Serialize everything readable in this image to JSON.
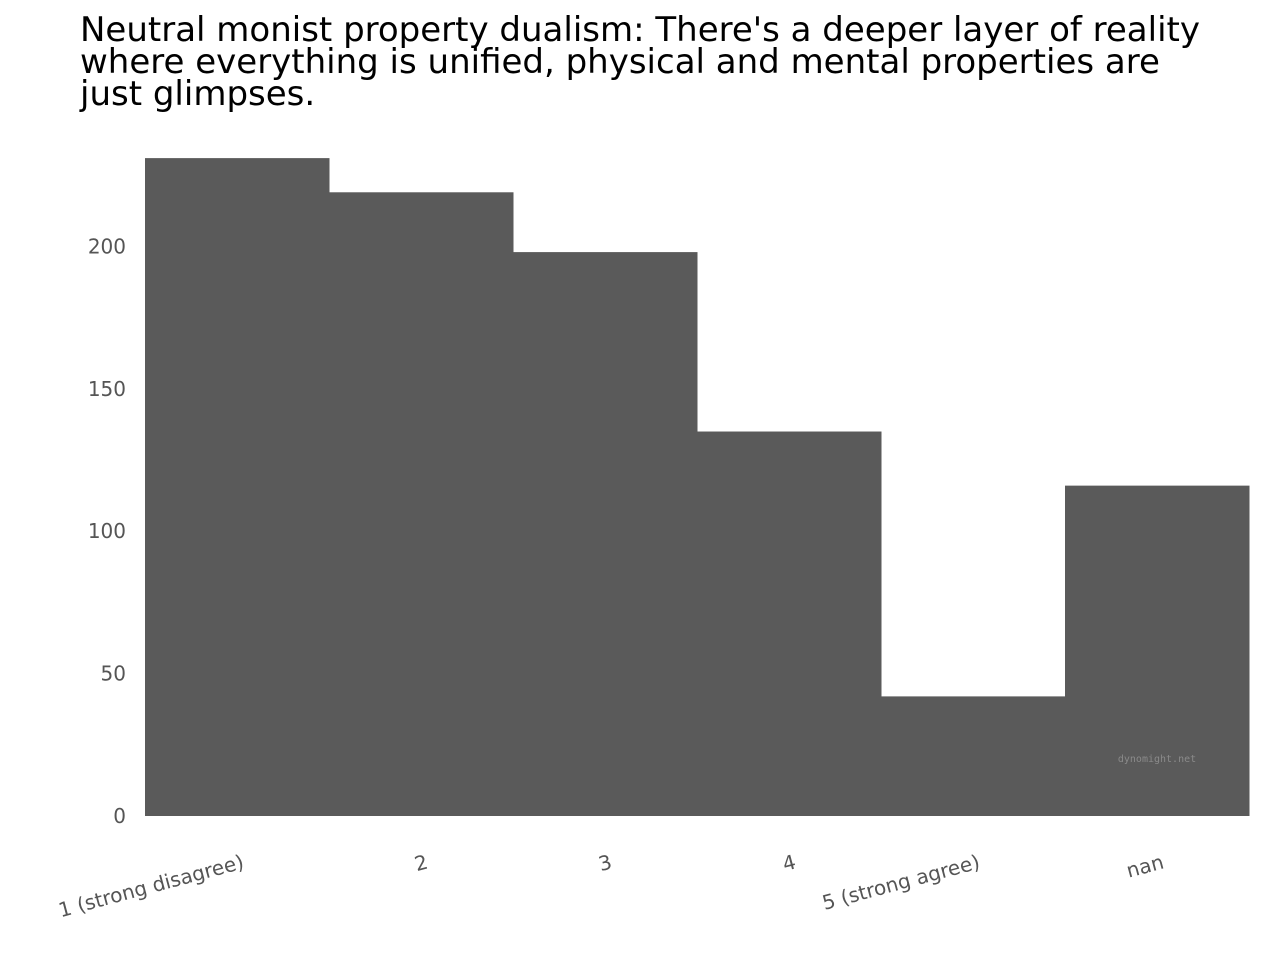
{
  "chart_data": {
    "type": "bar",
    "title_lines": [
      "Neutral monist property dualism: There's a deeper layer of reality",
      "where everything is unified, physical and mental properties are",
      "just glimpses."
    ],
    "categories": [
      "1 (strong disagree)",
      "2",
      "3",
      "4",
      "5 (strong agree)",
      "nan"
    ],
    "values": [
      231,
      219,
      198,
      135,
      42,
      116
    ],
    "yticks": [
      0,
      50,
      100,
      150,
      200
    ],
    "ylim": [
      0,
      231
    ],
    "xlabel": "",
    "ylabel": "",
    "grid": false,
    "bar_color": "#5a5a5a",
    "watermark": "dynomight.net"
  }
}
